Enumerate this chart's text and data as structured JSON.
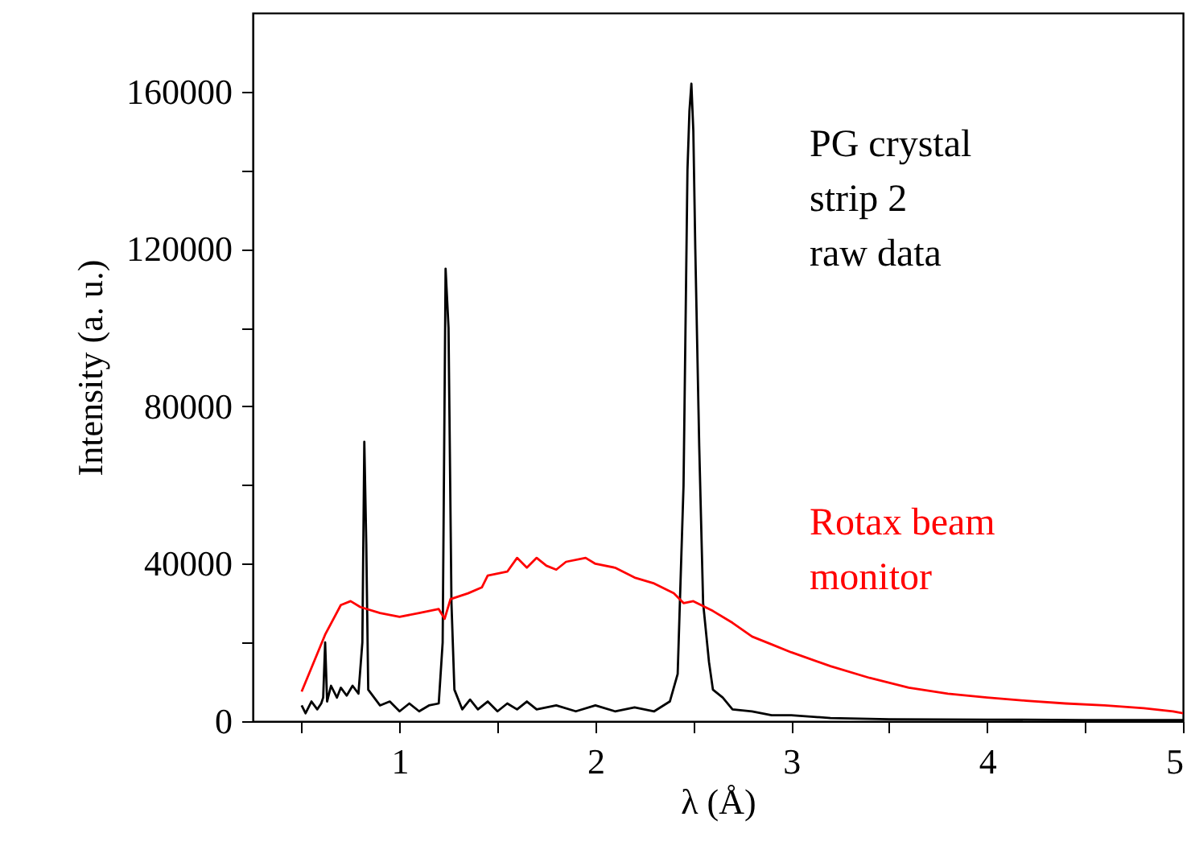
{
  "chart_data": {
    "type": "line",
    "xlabel": "λ (Å)",
    "ylabel": "Intensity (a. u.)",
    "xlim": [
      0.25,
      5
    ],
    "xticks": [
      {
        "value": 0.5,
        "label": null
      },
      1,
      {
        "value": 1.5,
        "label": null
      },
      2,
      {
        "value": 2.5,
        "label": null
      },
      3,
      {
        "value": 3.5,
        "label": null
      },
      4,
      {
        "value": 4.5,
        "label": null
      },
      5
    ],
    "ylim": [
      0,
      180000
    ],
    "yticks": [
      0,
      {
        "value": 20000,
        "label": null
      },
      40000,
      {
        "value": 60000,
        "label": null
      },
      80000,
      {
        "value": 100000,
        "label": null
      },
      120000,
      {
        "value": 140000,
        "label": null
      },
      160000
    ],
    "grid": false,
    "legend": false,
    "marker": "none",
    "line_style": "solid",
    "series": [
      {
        "name": "PG crystal\nstrip 2\nraw data",
        "color": "#000000",
        "x": [
          0.5,
          0.52,
          0.55,
          0.58,
          0.6,
          0.61,
          0.62,
          0.63,
          0.65,
          0.68,
          0.7,
          0.73,
          0.76,
          0.79,
          0.81,
          0.82,
          0.83,
          0.84,
          0.87,
          0.9,
          0.95,
          1.0,
          1.05,
          1.1,
          1.15,
          1.2,
          1.22,
          1.235,
          1.25,
          1.265,
          1.28,
          1.32,
          1.36,
          1.4,
          1.45,
          1.5,
          1.55,
          1.6,
          1.65,
          1.7,
          1.8,
          1.9,
          2.0,
          2.1,
          2.2,
          2.3,
          2.38,
          2.42,
          2.45,
          2.47,
          2.48,
          2.49,
          2.5,
          2.51,
          2.53,
          2.55,
          2.58,
          2.6,
          2.65,
          2.7,
          2.8,
          2.9,
          3.0,
          3.2,
          3.5,
          4.0,
          4.5,
          5.0
        ],
        "values": [
          4000,
          2000,
          5000,
          3000,
          4500,
          6000,
          20000,
          5000,
          9000,
          6000,
          8500,
          6500,
          9000,
          7000,
          20000,
          71000,
          45000,
          8000,
          6000,
          4000,
          5000,
          2500,
          4500,
          2500,
          4000,
          4500,
          20000,
          115000,
          100000,
          30000,
          8000,
          3000,
          5500,
          3000,
          5000,
          2500,
          4500,
          3000,
          5000,
          3000,
          4000,
          2500,
          4000,
          2500,
          3500,
          2500,
          5000,
          12000,
          60000,
          140000,
          155000,
          162000,
          150000,
          120000,
          70000,
          30000,
          15000,
          8000,
          6000,
          3000,
          2500,
          1500,
          1500,
          800,
          500,
          400,
          300,
          300
        ]
      },
      {
        "name": "Rotax beam\nmonitor",
        "color": "#ff0000",
        "x": [
          0.5,
          0.62,
          0.7,
          0.75,
          0.8,
          0.9,
          1.0,
          1.1,
          1.2,
          1.23,
          1.26,
          1.35,
          1.42,
          1.45,
          1.55,
          1.6,
          1.65,
          1.7,
          1.75,
          1.8,
          1.85,
          1.95,
          2.0,
          2.1,
          2.2,
          2.3,
          2.4,
          2.45,
          2.5,
          2.6,
          2.7,
          2.8,
          2.9,
          3.0,
          3.2,
          3.4,
          3.6,
          3.8,
          4.0,
          4.2,
          4.4,
          4.6,
          4.8,
          4.95,
          5.0
        ],
        "values": [
          7500,
          22000,
          29500,
          30500,
          29000,
          27500,
          26500,
          27500,
          28500,
          26000,
          31000,
          32500,
          34000,
          37000,
          38000,
          41500,
          39000,
          41500,
          39500,
          38500,
          40500,
          41500,
          40000,
          39000,
          36500,
          35000,
          32500,
          30000,
          30500,
          28000,
          25000,
          21500,
          19500,
          17500,
          14000,
          11000,
          8500,
          7000,
          6000,
          5200,
          4500,
          4000,
          3300,
          2500,
          2000
        ]
      }
    ]
  }
}
